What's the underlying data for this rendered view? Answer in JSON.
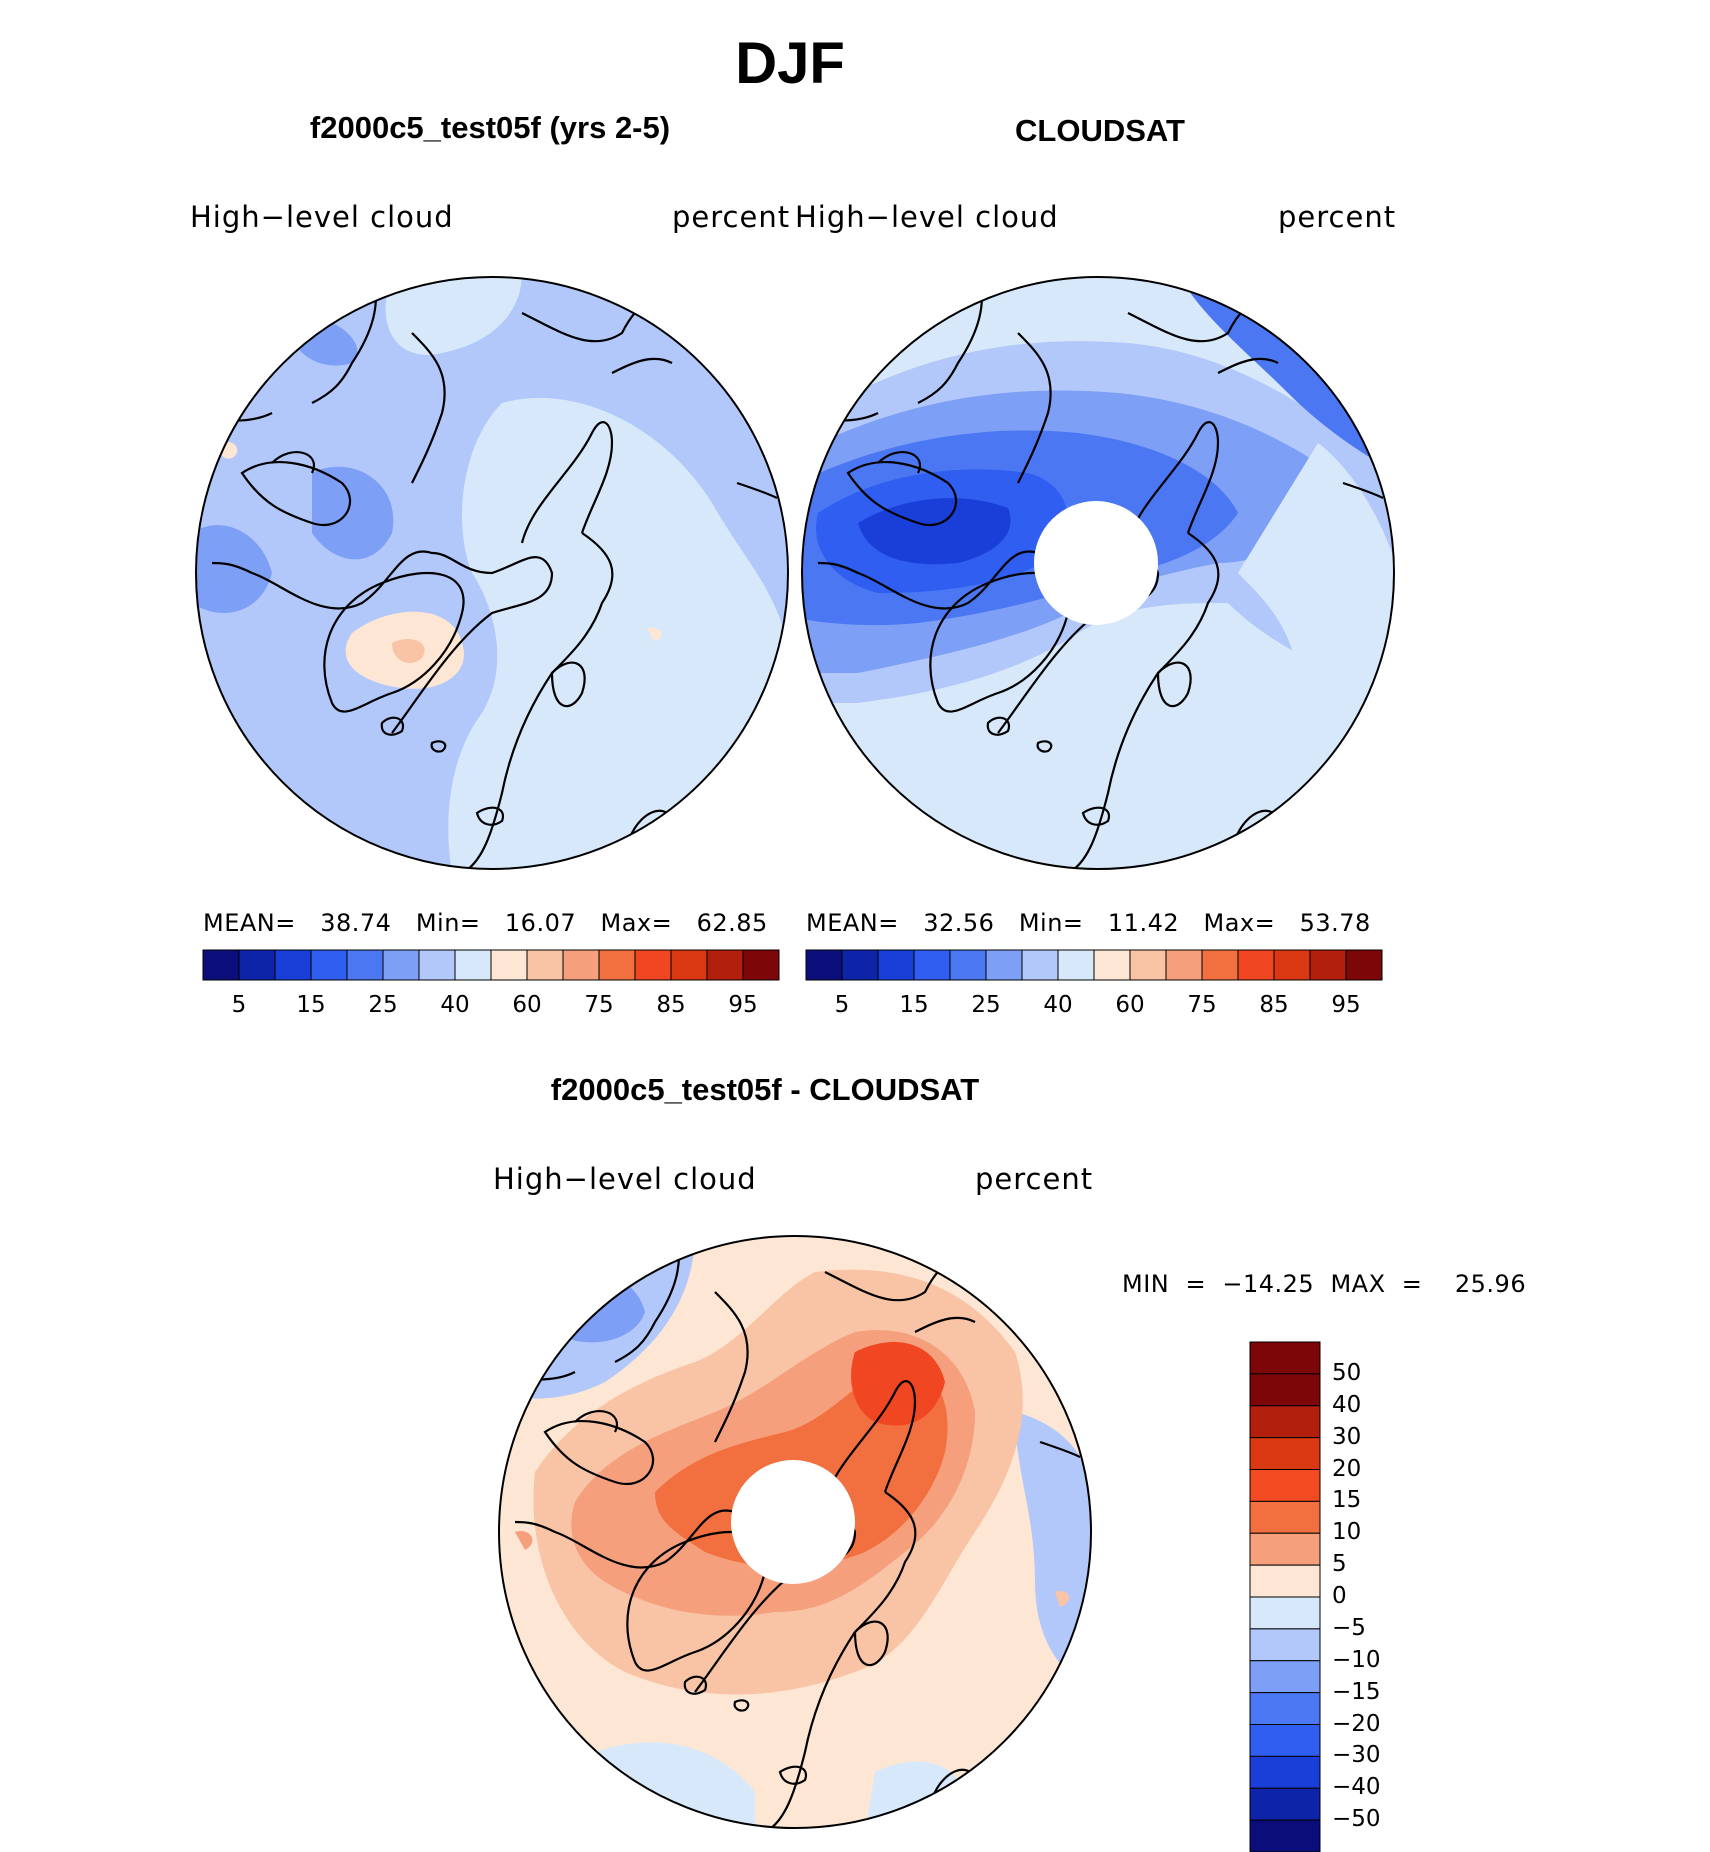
{
  "figure": {
    "season": "DJF",
    "colors": {
      "land_outline": "#000000",
      "polar_mask": "#ffffff",
      "abs_scale": [
        "#0b0e7a",
        "#0d23a8",
        "#1a3fd8",
        "#2f5ef0",
        "#4b78f2",
        "#7d9ff5",
        "#b2c8fa",
        "#d8e8fb",
        "#fde7d4",
        "#f9c4a6",
        "#f59f7d",
        "#f2703f",
        "#f04621",
        "#d93813",
        "#b31f0d",
        "#7d0708"
      ],
      "diff_scale": [
        "#7d0708",
        "#b31f0d",
        "#d93813",
        "#f24a21",
        "#f2703f",
        "#f59f7d",
        "#fde7d4",
        "#d8e8fb",
        "#b2c8fa",
        "#7d9ff5",
        "#4b78f2",
        "#2f5ef0",
        "#1a3fd8",
        "#0d23a8",
        "#0b0e7a"
      ]
    },
    "panels": {
      "model": {
        "title": "f2000c5_test05f (yrs 2-5)",
        "variable": "High−level  cloud",
        "units": "percent",
        "stats": "MEAN=   38.74   Min=   16.07   Max=   62.85",
        "colorbar_ticks": [
          "5",
          "15",
          "25",
          "40",
          "60",
          "75",
          "85",
          "95"
        ]
      },
      "obs": {
        "title": "CLOUDSAT",
        "variable": "High−level  cloud",
        "units": "percent",
        "stats": "MEAN=   32.56   Min=   11.42   Max=   53.78",
        "colorbar_ticks": [
          "5",
          "15",
          "25",
          "40",
          "60",
          "75",
          "85",
          "95"
        ]
      },
      "diff": {
        "title": "f2000c5_test05f - CLOUDSAT",
        "variable": "High−level  cloud",
        "units": "percent",
        "stats": "MIN  =  −14.25  MAX  =    25.96",
        "colorbar_ticks": [
          "50",
          "40",
          "30",
          "20",
          "15",
          "10",
          "5",
          "0",
          "−5",
          "−10",
          "−15",
          "−20",
          "−30",
          "−40",
          "−50"
        ]
      }
    }
  }
}
